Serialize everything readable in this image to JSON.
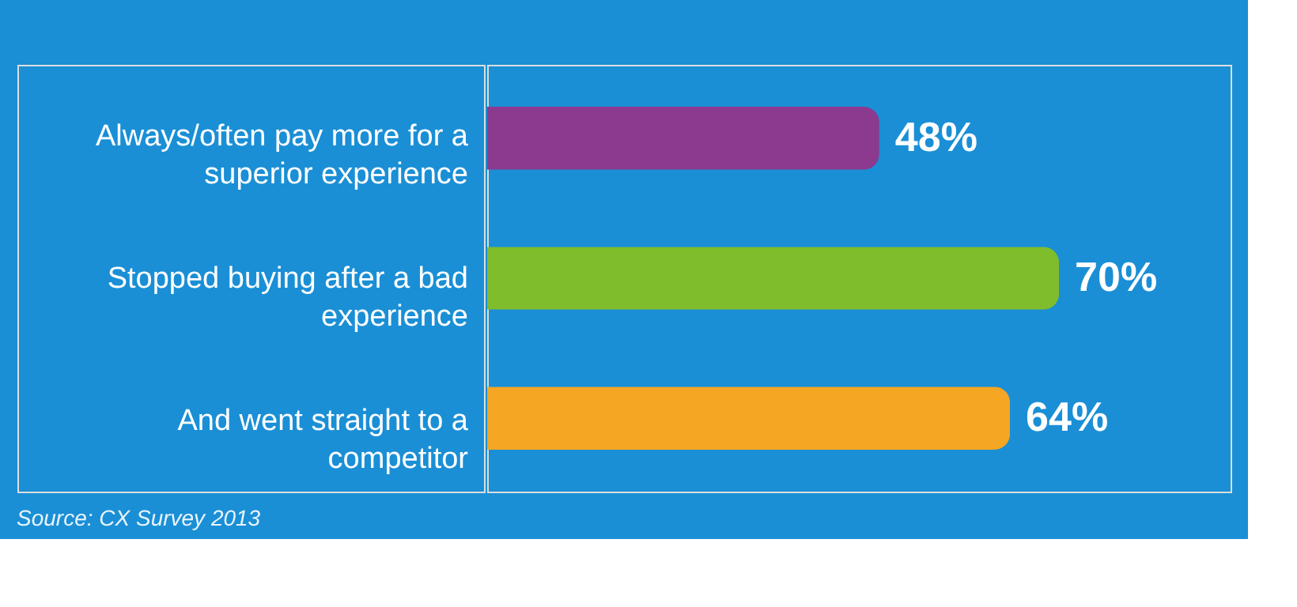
{
  "chart_data": {
    "type": "bar",
    "orientation": "horizontal",
    "value_labels": [
      "48%",
      "70%",
      "64%"
    ],
    "categories": [
      "Always/often pay more for a superior experience",
      "Stopped buying after a bad experience",
      "And went straight to a competitor"
    ],
    "values": [
      48,
      70,
      64
    ],
    "colors": [
      "#8b3a8f",
      "#80bd2c",
      "#f5a623"
    ],
    "annotations": [
      "Source: CX Survey 2013"
    ]
  }
}
